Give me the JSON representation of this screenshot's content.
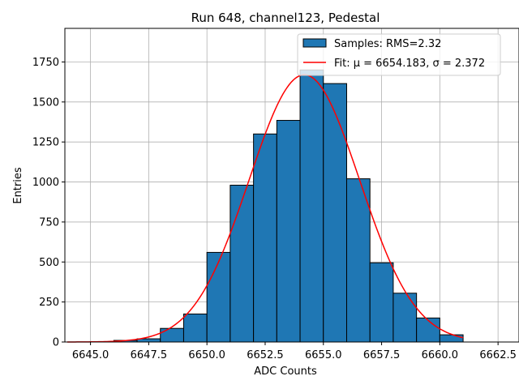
{
  "chart_data": {
    "type": "bar",
    "title": "Run 648, channel123, Pedestal",
    "xlabel": "ADC Counts",
    "ylabel": "Entries",
    "xlim": [
      6643.9,
      6663.4
    ],
    "ylim": [
      0,
      1960
    ],
    "x_ticks": [
      6645.0,
      6647.5,
      6650.0,
      6652.5,
      6655.0,
      6657.5,
      6660.0,
      6662.5
    ],
    "x_tick_labels": [
      "6645.0",
      "6647.5",
      "6650.0",
      "6652.5",
      "6655.0",
      "6657.5",
      "6660.0",
      "6662.5"
    ],
    "y_ticks": [
      0,
      250,
      500,
      750,
      1000,
      1250,
      1500,
      1750
    ],
    "y_tick_labels": [
      "0",
      "250",
      "500",
      "750",
      "1000",
      "1250",
      "1500",
      "1750"
    ],
    "grid": true,
    "legend_position": "top-right",
    "histogram": {
      "name": "Samples: RMS=2.32",
      "color": "#1f77b4",
      "edge_color": "#000000",
      "bin_edges": [
        6646,
        6647,
        6648,
        6649,
        6650,
        6651,
        6652,
        6653,
        6654,
        6655,
        6656,
        6657,
        6658,
        6659,
        6660,
        6661
      ],
      "counts": [
        10,
        20,
        85,
        175,
        560,
        980,
        1300,
        1385,
        1700,
        1615,
        1020,
        495,
        305,
        150,
        45
      ]
    },
    "fit": {
      "name": "Fit: μ = 6654.183, σ = 2.372",
      "color": "#ff0000",
      "mu": 6654.183,
      "sigma": 2.372,
      "peak": 1670,
      "x_range": [
        6644,
        6661
      ]
    }
  }
}
